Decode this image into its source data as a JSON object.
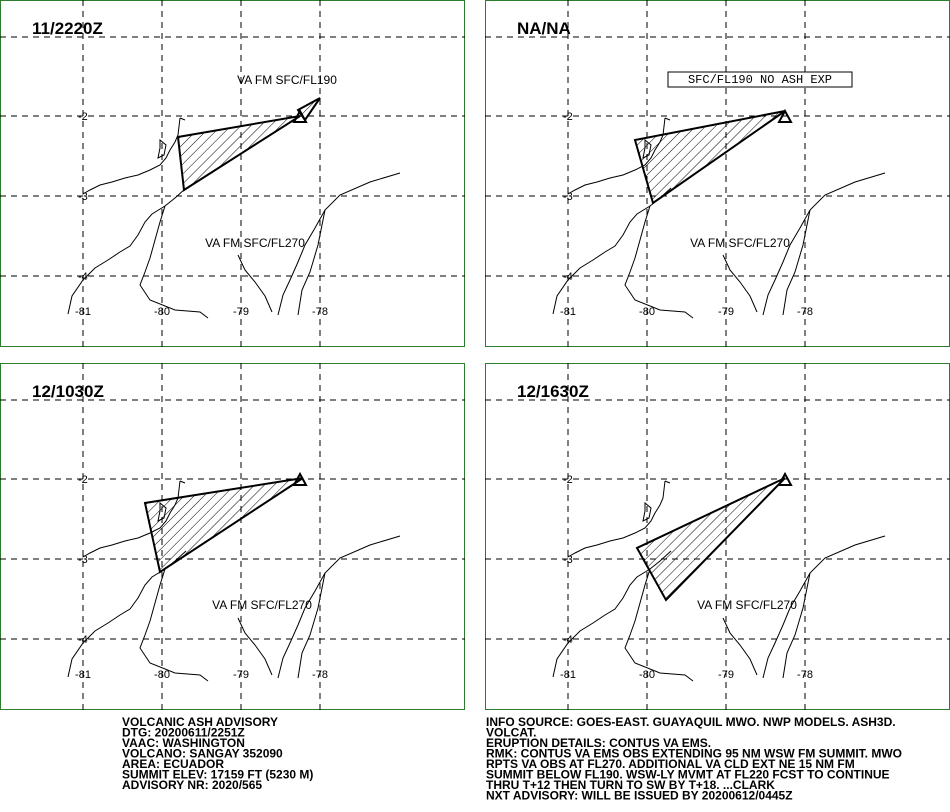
{
  "panels": [
    {
      "time": "11/2220Z",
      "annotations": [
        "VA FM SFC/FL190",
        "VA FM SFC/FL270"
      ],
      "lat_labels": [
        "-2",
        "-3",
        "-4"
      ],
      "lon_labels": [
        "-81",
        "-80",
        "-79",
        "-78"
      ]
    },
    {
      "time": "NA/NA",
      "annotations": [
        "SFC/FL190 NO ASH EXP",
        "VA FM SFC/FL270"
      ],
      "lat_labels": [
        "-2",
        "-3",
        "-4"
      ],
      "lon_labels": [
        "-81",
        "-80",
        "-79",
        "-78"
      ]
    },
    {
      "time": "12/1030Z",
      "annotations": [
        "VA FM SFC/FL270"
      ],
      "lat_labels": [
        "-2",
        "-3",
        "-4"
      ],
      "lon_labels": [
        "-81",
        "-80",
        "-79",
        "-78"
      ]
    },
    {
      "time": "12/1630Z",
      "annotations": [
        "VA FM SFC/FL270"
      ],
      "lat_labels": [
        "-2",
        "-3",
        "-4"
      ],
      "lon_labels": [
        "-81",
        "-80",
        "-79",
        "-78"
      ]
    }
  ],
  "advisory_left": [
    "VOLCANIC ASH ADVISORY",
    "DTG: 20200611/2251Z",
    "VAAC: WASHINGTON",
    "VOLCANO: SANGAY 352090",
    "AREA: ECUADOR",
    "SUMMIT ELEV: 17159 FT (5230 M)",
    "ADVISORY NR: 2020/565"
  ],
  "advisory_right": [
    "INFO SOURCE: GOES-EAST. GUAYAQUIL MWO. NWP MODELS. ASH3D.",
    "VOLCAT.",
    "ERUPTION DETAILS: CONTUS VA EMS.",
    "RMK: CONTUS VA EMS OBS EXTENDING 95 NM WSW FM SUMMIT. MWO",
    "RPTS VA OBS AT FL270. ADDITIONAL VA CLD EXT NE 15 NM FM",
    "SUMMIT BELOW FL190. WSW-LY MVMT AT FL220 FCST TO CONTINUE",
    "THRU T+12 THEN TURN TO SW BY T+18. ...CLARK",
    "NXT ADVISORY: WILL BE ISSUED BY 20200612/0445Z"
  ]
}
